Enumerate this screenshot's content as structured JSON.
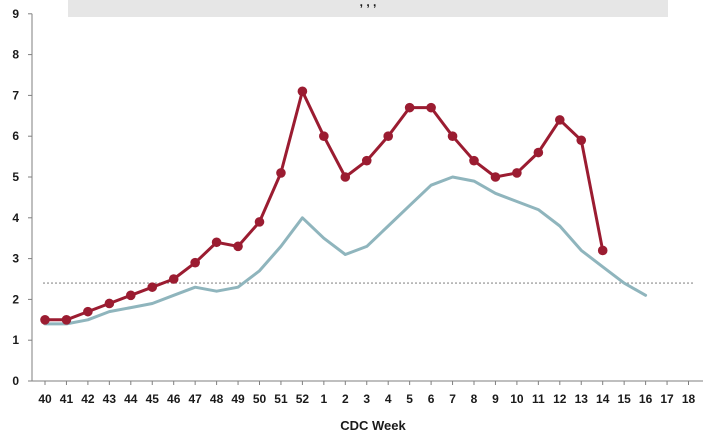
{
  "chart_data": {
    "type": "line",
    "title": "",
    "xlabel": "CDC Week",
    "ylabel": "",
    "categories": [
      "40",
      "41",
      "42",
      "43",
      "44",
      "45",
      "46",
      "47",
      "48",
      "49",
      "50",
      "51",
      "52",
      "1",
      "2",
      "3",
      "4",
      "5",
      "6",
      "7",
      "8",
      "9",
      "10",
      "11",
      "12",
      "13",
      "14",
      "15",
      "16",
      "17",
      "18"
    ],
    "yticks": [
      0,
      1,
      2,
      3,
      4,
      5,
      6,
      7,
      8,
      9
    ],
    "ylim": [
      0,
      9
    ],
    "grid": false,
    "baseline": {
      "value": 2.4,
      "color": "#8c8c8c",
      "style": "dotted"
    },
    "series": [
      {
        "color": "#9b1c31",
        "markers": true,
        "values": [
          1.5,
          1.5,
          1.7,
          1.9,
          2.1,
          2.3,
          2.5,
          2.9,
          3.4,
          3.3,
          3.9,
          5.1,
          7.1,
          6.0,
          5.0,
          5.4,
          6.0,
          6.7,
          6.7,
          6.0,
          5.4,
          5.0,
          5.1,
          5.6,
          6.4,
          5.9,
          3.2,
          null,
          null,
          null,
          null
        ]
      },
      {
        "color": "#8fb5bd",
        "markers": false,
        "values": [
          1.4,
          1.4,
          1.5,
          1.7,
          1.8,
          1.9,
          2.1,
          2.3,
          2.2,
          2.3,
          2.7,
          3.3,
          4.0,
          3.5,
          3.1,
          3.3,
          3.8,
          4.3,
          4.8,
          5.0,
          4.9,
          4.6,
          4.4,
          4.2,
          3.8,
          3.2,
          2.8,
          2.4,
          2.1,
          null,
          null
        ]
      }
    ]
  },
  "title_banner": {
    "text": ", , ,",
    "background": "#e6e6e6"
  }
}
